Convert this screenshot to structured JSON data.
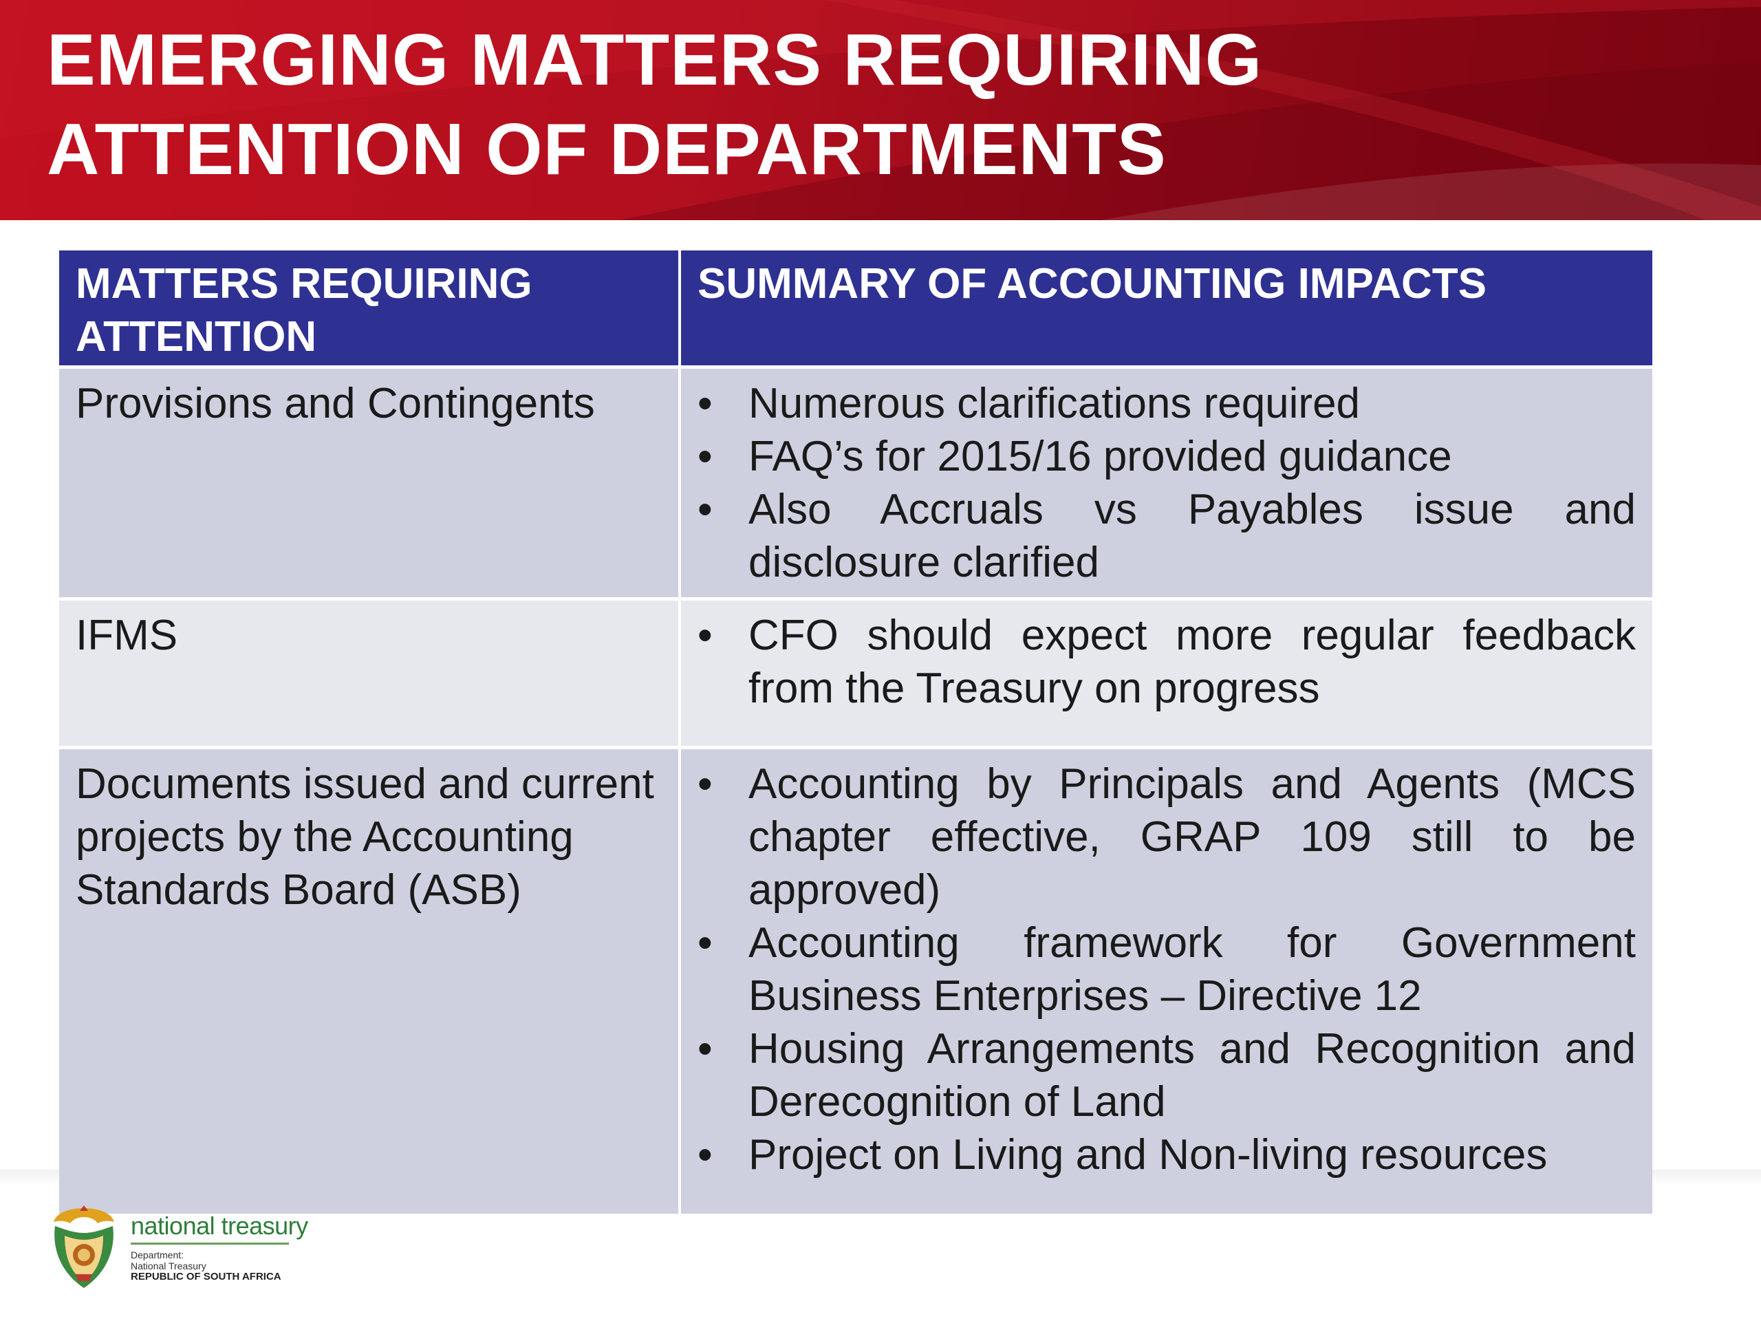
{
  "slide": {
    "title_lines": [
      "EMERGING MATTERS REQUIRING",
      "ATTENTION OF DEPARTMENTS"
    ],
    "colors": {
      "header_red": "#b20f1f",
      "table_header_blue": "#2e3192",
      "row_dark": "#ced0df",
      "row_light": "#e7e8ee"
    }
  },
  "table": {
    "headers": [
      "MATTERS REQUIRING ATTENTION",
      "SUMMARY OF ACCOUNTING IMPACTS"
    ],
    "rows": [
      {
        "matter": "Provisions and Contingents",
        "impacts": [
          "Numerous clarifications required",
          "FAQ’s for 2015/16 provided guidance",
          "Also Accruals vs Payables issue and disclosure clarified"
        ]
      },
      {
        "matter": "IFMS",
        "impacts": [
          "CFO should expect more regular feedback from the Treasury on progress"
        ]
      },
      {
        "matter": "Documents issued and current projects by the Accounting Standards Board (ASB)",
        "impacts": [
          "Accounting by Principals and Agents (MCS chapter effective, GRAP 109 still to be approved)",
          "Accounting framework for Government Business Enterprises – Directive 12",
          "Housing Arrangements and Recognition and Derecognition of Land",
          "Project on Living and Non-living resources"
        ]
      }
    ]
  },
  "logo": {
    "brand": "national treasury",
    "line1": "Department:",
    "line2": "National Treasury",
    "line3": "REPUBLIC OF SOUTH AFRICA",
    "crest_icon": "coat-of-arms-icon"
  }
}
